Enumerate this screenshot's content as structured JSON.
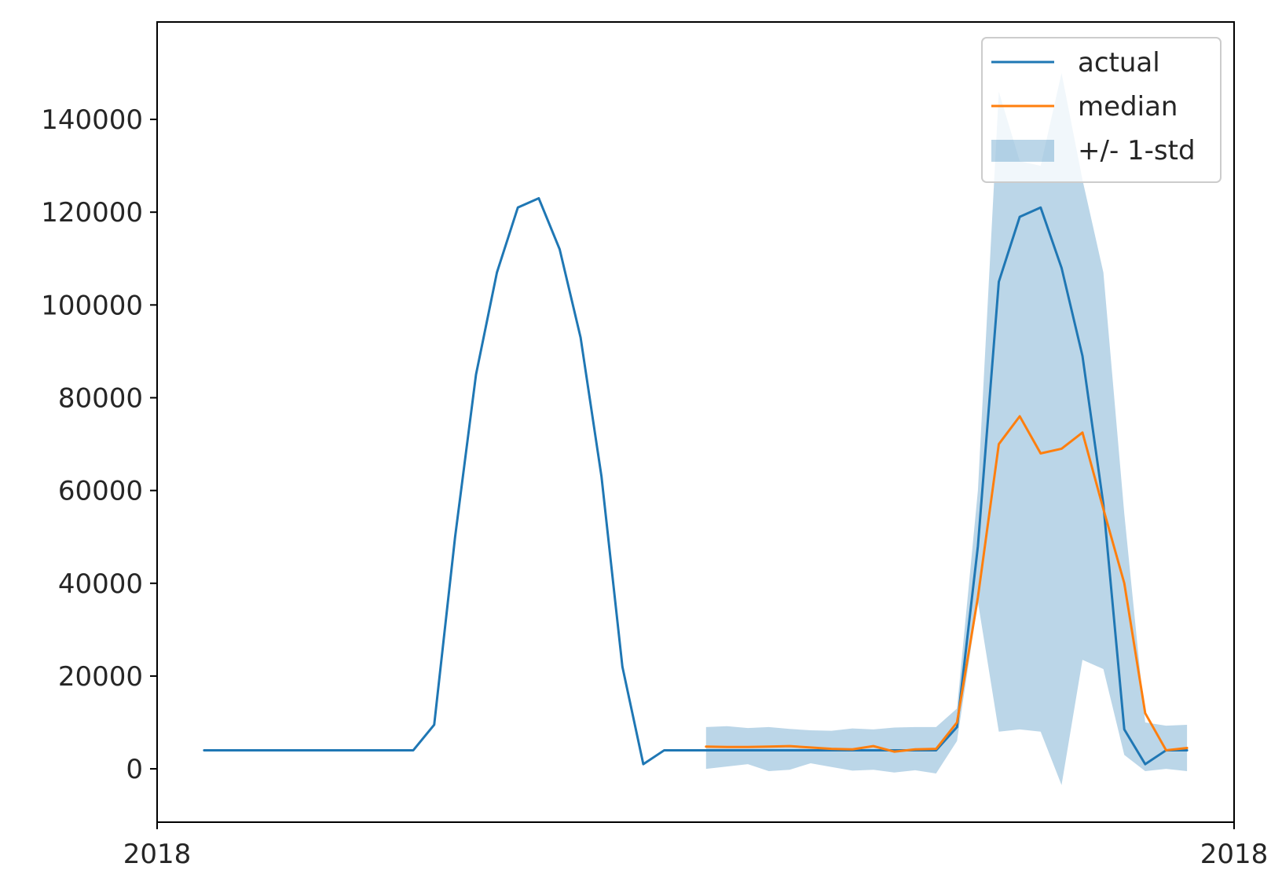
{
  "chart_data": {
    "type": "line",
    "title": "",
    "xlabel": "",
    "ylabel": "",
    "x_tick_labels": [
      "2018",
      "2018"
    ],
    "y_ticks": [
      0,
      20000,
      40000,
      60000,
      80000,
      100000,
      120000,
      140000
    ],
    "ylim": [
      -11500,
      161000
    ],
    "xlim": [
      -2.25,
      49.25
    ],
    "legend_position": "upper right",
    "series": [
      {
        "name": "actual",
        "color": "#1f77b4",
        "x": [
          0,
          1,
          2,
          3,
          4,
          5,
          6,
          7,
          8,
          9,
          10,
          11,
          12,
          13,
          14,
          15,
          16,
          17,
          18,
          19,
          20,
          21,
          22,
          23,
          24,
          25,
          26,
          27,
          28,
          29,
          30,
          31,
          32,
          33,
          34,
          35,
          36,
          37,
          38,
          39,
          40,
          41,
          42,
          43,
          44,
          45,
          46,
          47
        ],
        "values": [
          4000,
          4000,
          4000,
          4000,
          4000,
          4000,
          4000,
          4000,
          4000,
          4000,
          4000,
          9500,
          50000,
          85000,
          107000,
          121000,
          123000,
          112000,
          93000,
          63000,
          22000,
          1000,
          4000,
          4000,
          4000,
          4000,
          4000,
          4000,
          4000,
          4000,
          4000,
          4000,
          4000,
          4000,
          4000,
          4000,
          9000,
          48000,
          105000,
          119000,
          121000,
          108000,
          89000,
          57000,
          8500,
          1000,
          4000,
          4000
        ]
      },
      {
        "name": "median",
        "color": "#ff7f0e",
        "x": [
          24,
          25,
          26,
          27,
          28,
          29,
          30,
          31,
          32,
          33,
          34,
          35,
          36,
          37,
          38,
          39,
          40,
          41,
          42,
          43,
          44,
          45,
          46,
          47
        ],
        "values": [
          4800,
          4700,
          4700,
          4800,
          4900,
          4600,
          4300,
          4200,
          4900,
          3700,
          4200,
          4300,
          10000,
          37000,
          70000,
          76000,
          68000,
          69000,
          72500,
          56000,
          40000,
          12000,
          4000,
          4500
        ]
      }
    ],
    "band": {
      "name": "+/- 1-std",
      "color": "#1f77b4",
      "opacity": 0.3,
      "x": [
        24,
        25,
        26,
        27,
        28,
        29,
        30,
        31,
        32,
        33,
        34,
        35,
        36,
        37,
        38,
        39,
        40,
        41,
        42,
        43,
        44,
        45,
        46,
        47
      ],
      "lower": [
        0,
        500,
        1000,
        -500,
        -200,
        1200,
        400,
        -400,
        -200,
        -800,
        -300,
        -1000,
        6000,
        36000,
        8000,
        8500,
        8000,
        -3500,
        23500,
        21500,
        3000,
        -500,
        0,
        -500
      ],
      "upper": [
        9000,
        9200,
        8800,
        9000,
        8600,
        8300,
        8200,
        8700,
        8500,
        8900,
        9000,
        9000,
        13000,
        60000,
        146000,
        131000,
        130000,
        150000,
        127000,
        107000,
        55000,
        10000,
        9300,
        9500
      ]
    }
  }
}
